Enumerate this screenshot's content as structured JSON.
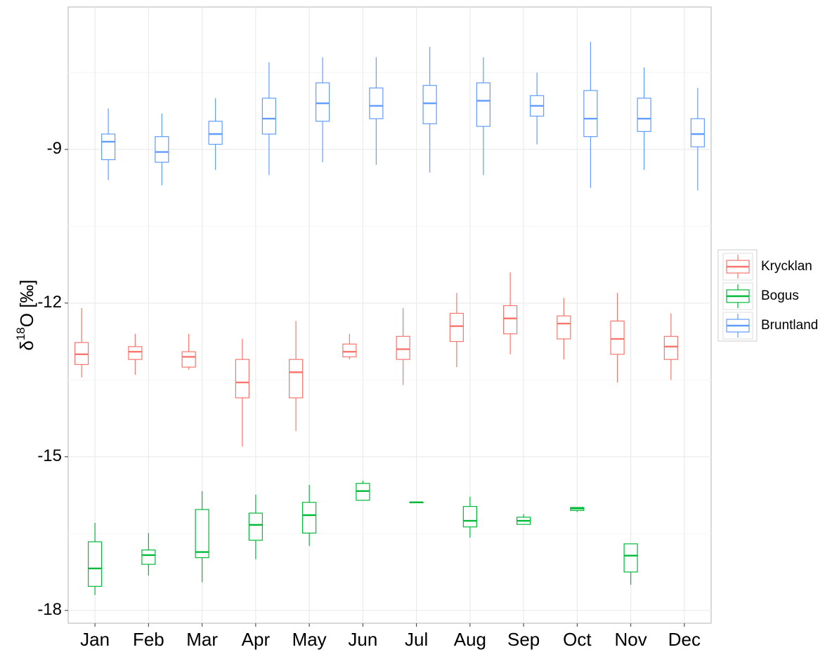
{
  "chart_data": {
    "type": "boxplot",
    "y_label": [
      "δ",
      "18",
      "O [‰]"
    ],
    "categories": [
      "Jan",
      "Feb",
      "Mar",
      "Apr",
      "May",
      "Jun",
      "Jul",
      "Aug",
      "Sep",
      "Oct",
      "Nov",
      "Dec"
    ],
    "ylim": [
      -18.25,
      -6.22
    ],
    "yticks": [
      -9,
      -12,
      -15,
      -18
    ],
    "grid": true,
    "legend": "right",
    "series": [
      {
        "name": "Krycklan",
        "color": "#F8766D",
        "boxes": [
          {
            "min": -13.45,
            "q1": -13.2,
            "median": -13.0,
            "q3": -12.77,
            "max": -12.1
          },
          {
            "min": -13.4,
            "q1": -13.1,
            "median": -12.95,
            "q3": -12.85,
            "max": -12.6
          },
          {
            "min": -13.3,
            "q1": -13.25,
            "median": -13.05,
            "q3": -12.95,
            "max": -12.6
          },
          {
            "min": -14.8,
            "q1": -13.85,
            "median": -13.55,
            "q3": -13.1,
            "max": -12.7
          },
          {
            "min": -14.5,
            "q1": -13.85,
            "median": -13.35,
            "q3": -13.1,
            "max": -12.35
          },
          {
            "min": -13.1,
            "q1": -13.05,
            "median": -12.95,
            "q3": -12.8,
            "max": -12.6
          },
          {
            "min": -13.6,
            "q1": -13.1,
            "median": -12.9,
            "q3": -12.65,
            "max": -12.1
          },
          {
            "min": -13.25,
            "q1": -12.75,
            "median": -12.45,
            "q3": -12.2,
            "max": -11.8
          },
          {
            "min": -13.0,
            "q1": -12.6,
            "median": -12.3,
            "q3": -12.05,
            "max": -11.4
          },
          {
            "min": -13.1,
            "q1": -12.7,
            "median": -12.4,
            "q3": -12.25,
            "max": -11.9
          },
          {
            "min": -13.55,
            "q1": -13.0,
            "median": -12.7,
            "q3": -12.35,
            "max": -11.8
          },
          {
            "min": -13.5,
            "q1": -13.1,
            "median": -12.85,
            "q3": -12.65,
            "max": -12.2
          }
        ]
      },
      {
        "name": "Bogus",
        "color": "#00BA38",
        "boxes": [
          {
            "min": -17.7,
            "q1": -17.53,
            "median": -17.18,
            "q3": -16.66,
            "max": -16.29
          },
          {
            "min": -17.32,
            "q1": -17.1,
            "median": -16.92,
            "q3": -16.82,
            "max": -16.49
          },
          {
            "min": -17.45,
            "q1": -16.97,
            "median": -16.86,
            "q3": -16.03,
            "max": -15.67
          },
          {
            "min": -17.0,
            "q1": -16.63,
            "median": -16.33,
            "q3": -16.1,
            "max": -15.74
          },
          {
            "min": -16.74,
            "q1": -16.49,
            "median": -16.14,
            "q3": -15.89,
            "max": -15.55
          },
          {
            "min": -15.85,
            "q1": -15.85,
            "median": -15.67,
            "q3": -15.52,
            "max": -15.47
          },
          {
            "min": -15.89,
            "q1": -15.89,
            "median": -15.89,
            "q3": -15.89,
            "max": -15.89
          },
          {
            "min": -16.58,
            "q1": -16.37,
            "median": -16.25,
            "q3": -15.97,
            "max": -15.78
          },
          {
            "min": -16.32,
            "q1": -16.32,
            "median": -16.25,
            "q3": -16.18,
            "max": -16.12
          },
          {
            "min": -16.08,
            "q1": -16.05,
            "median": -16.01,
            "q3": -15.99,
            "max": -15.99
          },
          {
            "min": -17.5,
            "q1": -17.25,
            "median": -16.93,
            "q3": -16.7,
            "max": -16.7
          },
          null
        ]
      },
      {
        "name": "Bruntland",
        "color": "#619CFF",
        "boxes": [
          {
            "min": -9.6,
            "q1": -9.2,
            "median": -8.85,
            "q3": -8.7,
            "max": -8.2
          },
          {
            "min": -9.7,
            "q1": -9.25,
            "median": -9.05,
            "q3": -8.75,
            "max": -8.3
          },
          {
            "min": -9.4,
            "q1": -8.9,
            "median": -8.7,
            "q3": -8.45,
            "max": -8.0
          },
          {
            "min": -9.5,
            "q1": -8.7,
            "median": -8.4,
            "q3": -8.0,
            "max": -7.3
          },
          {
            "min": -9.25,
            "q1": -8.45,
            "median": -8.1,
            "q3": -7.7,
            "max": -7.2
          },
          {
            "min": -9.3,
            "q1": -8.4,
            "median": -8.15,
            "q3": -7.8,
            "max": -7.2
          },
          {
            "min": -9.45,
            "q1": -8.5,
            "median": -8.1,
            "q3": -7.75,
            "max": -7.0
          },
          {
            "min": -9.5,
            "q1": -8.55,
            "median": -8.05,
            "q3": -7.7,
            "max": -7.2
          },
          {
            "min": -8.9,
            "q1": -8.35,
            "median": -8.15,
            "q3": -7.95,
            "max": -7.5
          },
          {
            "min": -9.75,
            "q1": -8.75,
            "median": -8.4,
            "q3": -7.85,
            "max": -6.9
          },
          {
            "min": -9.4,
            "q1": -8.65,
            "median": -8.4,
            "q3": -8.0,
            "max": -7.4
          },
          {
            "min": -9.8,
            "q1": -8.95,
            "median": -8.7,
            "q3": -8.4,
            "max": -7.8
          }
        ]
      }
    ]
  }
}
